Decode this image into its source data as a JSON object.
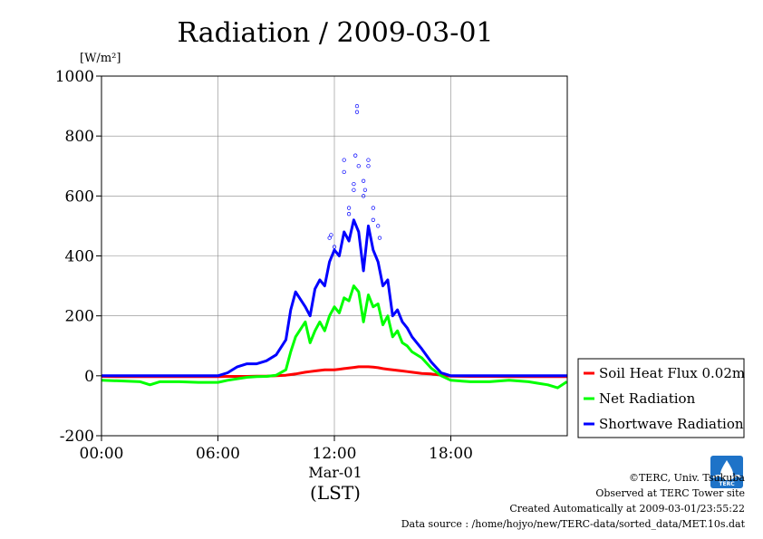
{
  "chart_data": {
    "type": "line",
    "title": "Radiation / 2009-03-01",
    "ylabel": "[W/m²]",
    "ylim": [
      -200,
      1000
    ],
    "yticks": [
      "-200",
      "0",
      "200",
      "400",
      "600",
      "800",
      "1000"
    ],
    "xlim": [
      "00:00",
      "24:00"
    ],
    "xticks": [
      "00:00",
      "06:00",
      "12:00",
      "18:00"
    ],
    "date_label": "Mar-01",
    "xlabel": "(LST)",
    "grid": true,
    "legend_position": "right",
    "x": [
      "00:00",
      "01:00",
      "02:00",
      "02:30",
      "03:00",
      "04:00",
      "05:00",
      "06:00",
      "06:30",
      "07:00",
      "07:30",
      "08:00",
      "08:30",
      "09:00",
      "09:30",
      "09:45",
      "10:00",
      "10:30",
      "10:45",
      "11:00",
      "11:15",
      "11:30",
      "11:45",
      "12:00",
      "12:15",
      "12:30",
      "12:45",
      "13:00",
      "13:15",
      "13:30",
      "13:45",
      "14:00",
      "14:15",
      "14:30",
      "14:45",
      "15:00",
      "15:15",
      "15:30",
      "15:45",
      "16:00",
      "16:30",
      "17:00",
      "17:30",
      "18:00",
      "19:00",
      "20:00",
      "21:00",
      "22:00",
      "22:30",
      "23:00",
      "23:30",
      "23:59"
    ],
    "series": [
      {
        "name": "Soil Heat Flux 0.02m",
        "color": "#ff0000",
        "values": [
          -2,
          -3,
          -3,
          -3,
          -3,
          -3,
          -3,
          -3,
          -2,
          -2,
          -2,
          -1,
          -1,
          0,
          2,
          4,
          6,
          12,
          14,
          16,
          18,
          20,
          20,
          20,
          22,
          24,
          26,
          28,
          30,
          30,
          30,
          29,
          27,
          24,
          22,
          20,
          18,
          16,
          14,
          12,
          8,
          6,
          2,
          -1,
          -2,
          -2,
          -3,
          -3,
          -3,
          -3,
          -3,
          -3
        ]
      },
      {
        "name": "Net Radiation",
        "color": "#00ff00",
        "values": [
          -15,
          -17,
          -20,
          -30,
          -20,
          -20,
          -22,
          -22,
          -15,
          -10,
          -5,
          -3,
          -2,
          2,
          20,
          80,
          130,
          180,
          110,
          150,
          180,
          150,
          200,
          230,
          210,
          260,
          250,
          300,
          280,
          180,
          270,
          230,
          240,
          170,
          200,
          130,
          150,
          110,
          100,
          80,
          60,
          25,
          0,
          -15,
          -20,
          -20,
          -15,
          -20,
          -25,
          -30,
          -40,
          -20
        ]
      },
      {
        "name": "Shortwave Radiation",
        "color": "#0000ff",
        "values": [
          0,
          0,
          0,
          0,
          0,
          0,
          0,
          0,
          10,
          30,
          40,
          40,
          50,
          70,
          120,
          220,
          280,
          230,
          200,
          290,
          320,
          300,
          380,
          420,
          400,
          480,
          450,
          520,
          480,
          350,
          500,
          420,
          380,
          300,
          320,
          200,
          220,
          180,
          160,
          130,
          90,
          45,
          10,
          0,
          0,
          0,
          0,
          0,
          0,
          0,
          0,
          0
        ]
      }
    ],
    "scatter_note_series": "Shortwave Radiation",
    "scatter_points": [
      {
        "x": "12:30",
        "y": 720
      },
      {
        "x": "12:30",
        "y": 680
      },
      {
        "x": "12:45",
        "y": 560
      },
      {
        "x": "12:45",
        "y": 540
      },
      {
        "x": "13:00",
        "y": 620
      },
      {
        "x": "13:00",
        "y": 640
      },
      {
        "x": "13:05",
        "y": 735
      },
      {
        "x": "13:10",
        "y": 900
      },
      {
        "x": "13:10",
        "y": 880
      },
      {
        "x": "13:15",
        "y": 700
      },
      {
        "x": "13:30",
        "y": 650
      },
      {
        "x": "13:30",
        "y": 600
      },
      {
        "x": "13:35",
        "y": 620
      },
      {
        "x": "13:45",
        "y": 720
      },
      {
        "x": "13:45",
        "y": 700
      },
      {
        "x": "14:00",
        "y": 520
      },
      {
        "x": "14:00",
        "y": 560
      },
      {
        "x": "14:15",
        "y": 500
      },
      {
        "x": "14:20",
        "y": 460
      },
      {
        "x": "11:45",
        "y": 460
      },
      {
        "x": "11:50",
        "y": 470
      },
      {
        "x": "12:00",
        "y": 430
      }
    ]
  },
  "credits": {
    "copyright": "©TERC, Univ. Tsukuba",
    "observed": "Observed at TERC Tower site",
    "created": "Created Automatically at 2009-03-01/23:55:22",
    "source": "Data source : /home/hojyo/new/TERC-data/sorted_data/MET.10s.dat"
  },
  "logo": {
    "text": "TERC",
    "color": "#1e73c8"
  }
}
